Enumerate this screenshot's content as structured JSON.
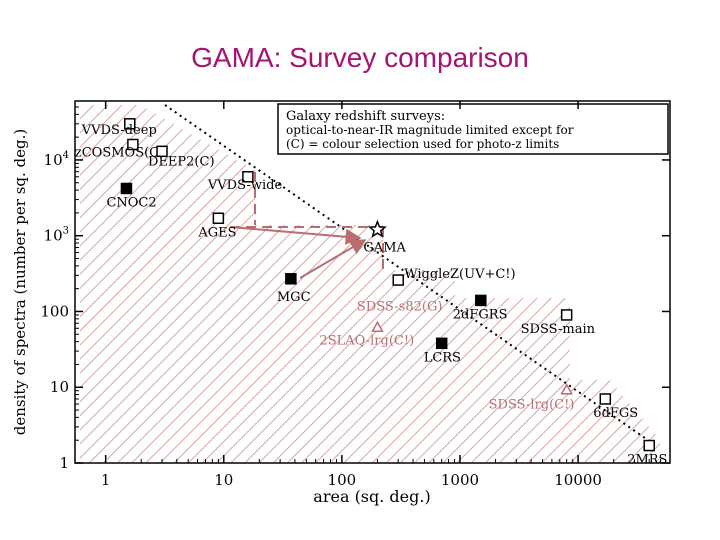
{
  "slide": {
    "title": "GAMA: Survey comparison"
  },
  "colors": {
    "title": "#a3156f",
    "hatch": "#d9a5a5",
    "accent": "#b86e6e",
    "black": "#000000"
  },
  "chart_data": {
    "type": "scatter",
    "xscale": "log",
    "yscale": "log",
    "xlim": [
      0.55,
      60000
    ],
    "ylim": [
      1,
      60000
    ],
    "xlabel": "area (sq. deg.)",
    "ylabel": "density of spectra (number per sq. deg.)",
    "xticks": [
      {
        "value": 1,
        "label": "1"
      },
      {
        "value": 10,
        "label": "10"
      },
      {
        "value": 100,
        "label": "100"
      },
      {
        "value": 1000,
        "label": "1000"
      },
      {
        "value": 10000,
        "label": "10000"
      }
    ],
    "yticks": [
      {
        "value": 1,
        "label": "1"
      },
      {
        "value": 10,
        "label": "10"
      },
      {
        "value": 100,
        "label": "100"
      },
      {
        "value": 1000,
        "label": "10^3"
      },
      {
        "value": 10000,
        "label": "10^4"
      }
    ],
    "legend_box": [
      "Galaxy redshift surveys:",
      "optical-to-near-IR magnitude limited except for",
      "(C) = colour selection used for photo-z limits"
    ],
    "points": [
      {
        "label": "VVDS-deep",
        "x": 1.6,
        "y": 30000,
        "marker": "open-square",
        "color": "black"
      },
      {
        "label": "zCOSMOS(C)",
        "x": 1.7,
        "y": 16000,
        "marker": "open-square",
        "color": "black"
      },
      {
        "label": "DEEP2(C)",
        "x": 3.0,
        "y": 13000,
        "marker": "open-square",
        "color": "black"
      },
      {
        "label": "VVDS-wide",
        "x": 16,
        "y": 6000,
        "marker": "open-square",
        "color": "black"
      },
      {
        "label": "CNOC2",
        "x": 1.5,
        "y": 4200,
        "marker": "filled-square",
        "color": "black"
      },
      {
        "label": "AGES",
        "x": 9,
        "y": 1700,
        "marker": "open-square",
        "color": "black"
      },
      {
        "label": "GAMA",
        "x": 200,
        "y": 1200,
        "marker": "open-star",
        "color": "black"
      },
      {
        "label": "WiggleZ(UV+C!)",
        "x": 300,
        "y": 260,
        "marker": "open-square",
        "color": "black"
      },
      {
        "label": "MGC",
        "x": 37,
        "y": 270,
        "marker": "filled-square",
        "color": "black"
      },
      {
        "label": "SDSS-s82(G)",
        "x": 250,
        "y": 200,
        "marker": "none",
        "color": "accent"
      },
      {
        "label": "2dFGRS",
        "x": 1500,
        "y": 140,
        "marker": "filled-square",
        "color": "black"
      },
      {
        "label": "SDSS-main",
        "x": 8000,
        "y": 90,
        "marker": "open-square",
        "color": "black"
      },
      {
        "label": "2SLAQ-lrg(C!)",
        "x": 200,
        "y": 60,
        "marker": "open-triangle",
        "color": "accent"
      },
      {
        "label": "LCRS",
        "x": 700,
        "y": 38,
        "marker": "filled-square",
        "color": "black"
      },
      {
        "label": "SDSS-lrg(C!)",
        "x": 8000,
        "y": 9,
        "marker": "open-triangle",
        "color": "accent"
      },
      {
        "label": "6dFGS",
        "x": 17000,
        "y": 7,
        "marker": "open-square",
        "color": "black"
      },
      {
        "label": "2MRS",
        "x": 40000,
        "y": 1.7,
        "marker": "open-square",
        "color": "black"
      }
    ]
  }
}
